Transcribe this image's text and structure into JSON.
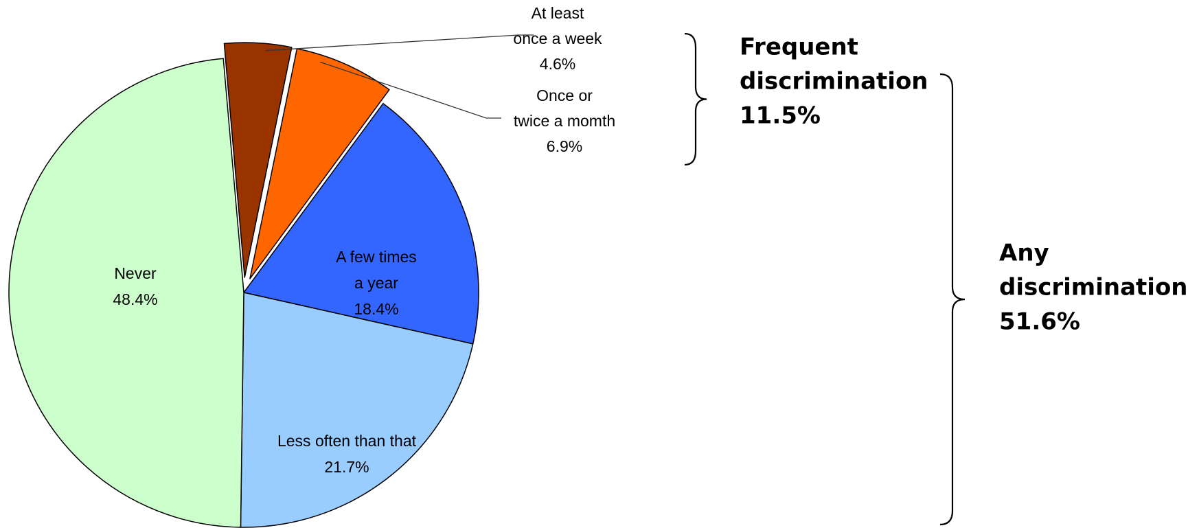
{
  "chart_data": {
    "type": "pie",
    "slices": [
      {
        "label_lines": [
          "At least",
          "once a week"
        ],
        "percent_label": "4.6%",
        "value": 4.6,
        "color": "#993300",
        "exploded": true
      },
      {
        "label_lines": [
          "Once or",
          "twice a momth"
        ],
        "percent_label": "6.9%",
        "value": 6.9,
        "color": "#FF6600",
        "exploded": true
      },
      {
        "label_lines": [
          "A few times",
          "a year"
        ],
        "percent_label": "18.4%",
        "value": 18.4,
        "color": "#3366FF",
        "exploded": false
      },
      {
        "label_lines": [
          "Less often than that"
        ],
        "percent_label": "21.7%",
        "value": 21.7,
        "color": "#99CCFF",
        "exploded": false
      },
      {
        "label_lines": [
          "Never"
        ],
        "percent_label": "48.4%",
        "value": 48.4,
        "color": "#CCFFCC",
        "exploded": false
      }
    ],
    "groups": [
      {
        "lines": [
          "Frequent",
          "discrimination",
          "11.5%"
        ],
        "value": 11.5
      },
      {
        "lines": [
          "Any",
          "discrimination",
          "51.6%"
        ],
        "value": 51.6
      }
    ]
  }
}
